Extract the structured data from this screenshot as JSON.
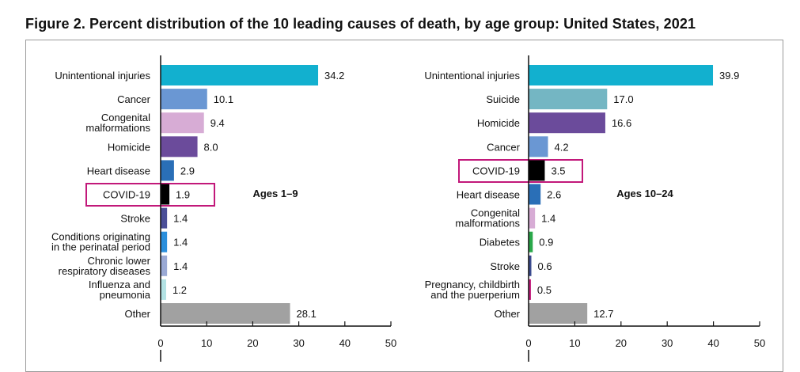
{
  "figure": {
    "title": "Figure 2. Percent distribution of the 10 leading causes of death, by age group: United States, 2021"
  },
  "chart_data": [
    {
      "type": "bar",
      "orientation": "horizontal",
      "group_label": "Ages 1–9",
      "categories": [
        [
          "Unintentional injuries"
        ],
        [
          "Cancer"
        ],
        [
          "Congenital",
          "malformations"
        ],
        [
          "Homicide"
        ],
        [
          "Heart disease"
        ],
        [
          "COVID-19"
        ],
        [
          "Stroke"
        ],
        [
          "Conditions originating",
          "in the perinatal period"
        ],
        [
          "Chronic lower",
          "respiratory diseases"
        ],
        [
          "Influenza and",
          "pneumonia"
        ],
        [
          "Other"
        ]
      ],
      "values": [
        34.2,
        10.1,
        9.4,
        8.0,
        2.9,
        1.9,
        1.4,
        1.4,
        1.4,
        1.2,
        28.1
      ],
      "value_labels": [
        "34.2",
        "10.1",
        "9.4",
        "8.0",
        "2.9",
        "1.9",
        "1.4",
        "1.4",
        "1.4",
        "1.2",
        "28.1"
      ],
      "colors": [
        "#12b0cf",
        "#6a97d3",
        "#d7acd5",
        "#6b4b9b",
        "#2a6fb7",
        "#000000",
        "#4b4f98",
        "#2b8fdc",
        "#9aa9d4",
        "#b3e2e4",
        "#a1a1a1"
      ],
      "highlight_index": 5,
      "xlim": [
        0,
        50
      ],
      "xticks": [
        0,
        10,
        20,
        30,
        40,
        50
      ]
    },
    {
      "type": "bar",
      "orientation": "horizontal",
      "group_label": "Ages 10–24",
      "categories": [
        [
          "Unintentional injuries"
        ],
        [
          "Suicide"
        ],
        [
          "Homicide"
        ],
        [
          "Cancer"
        ],
        [
          "COVID-19"
        ],
        [
          "Heart disease"
        ],
        [
          "Congenital",
          "malformations"
        ],
        [
          "Diabetes"
        ],
        [
          "Stroke"
        ],
        [
          "Pregnancy, childbirth",
          "and the puerperium"
        ],
        [
          "Other"
        ]
      ],
      "values": [
        39.9,
        17.0,
        16.6,
        4.2,
        3.5,
        2.6,
        1.4,
        0.9,
        0.6,
        0.5,
        12.7
      ],
      "value_labels": [
        "39.9",
        "17.0",
        "16.6",
        "4.2",
        "3.5",
        "2.6",
        "1.4",
        "0.9",
        "0.6",
        "0.5",
        "12.7"
      ],
      "colors": [
        "#12b0cf",
        "#74b6c3",
        "#6b4b9b",
        "#6a97d3",
        "#000000",
        "#2a6fb7",
        "#d7acd5",
        "#2aa84a",
        "#3b4b8f",
        "#c2187a",
        "#a1a1a1"
      ],
      "highlight_index": 4,
      "xlim": [
        0,
        50
      ],
      "xticks": [
        0,
        10,
        20,
        30,
        40,
        50
      ]
    }
  ]
}
